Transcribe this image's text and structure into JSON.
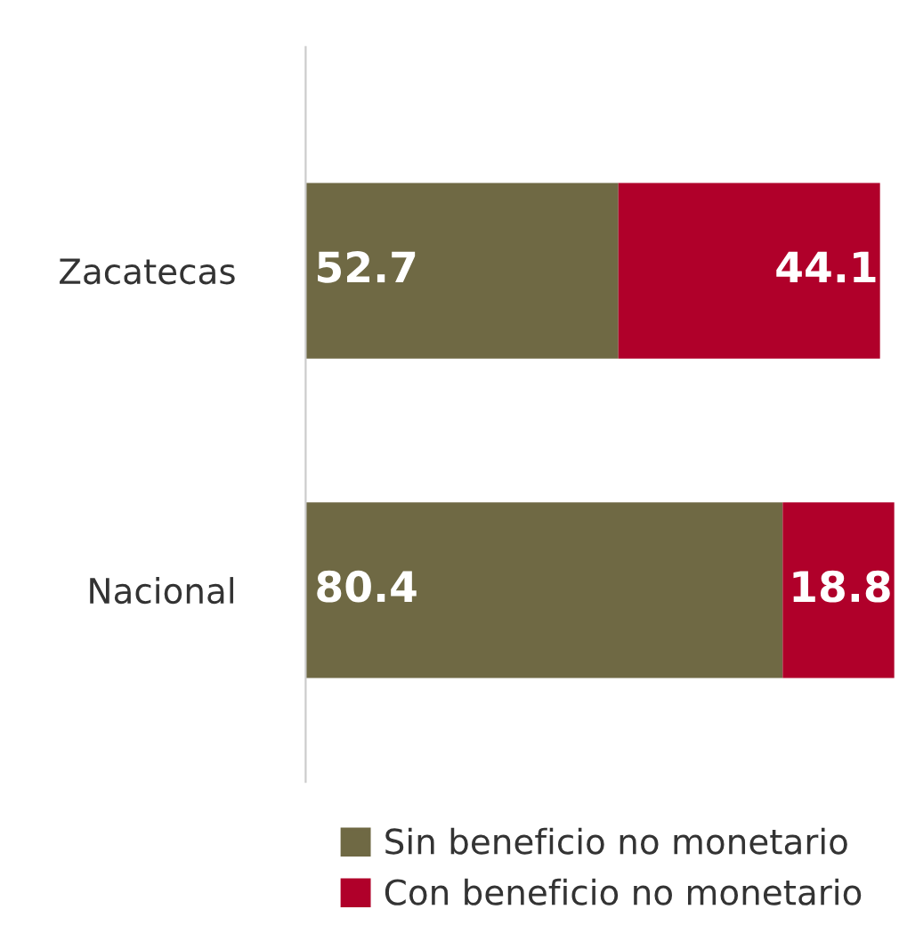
{
  "chart_data": {
    "type": "bar",
    "orientation": "horizontal",
    "stacked": true,
    "categories": [
      "Zacatecas",
      "Nacional"
    ],
    "series": [
      {
        "name": "Sin beneficio no monetario",
        "color": "#6f6944",
        "values": [
          52.7,
          80.4
        ]
      },
      {
        "name": "Con beneficio no monetario",
        "color": "#b0002a",
        "values": [
          44.1,
          18.8
        ]
      }
    ],
    "xlim": [
      0,
      100
    ],
    "data_labels": true,
    "legend": "bottom",
    "grid": false,
    "tick_labels": "y"
  }
}
